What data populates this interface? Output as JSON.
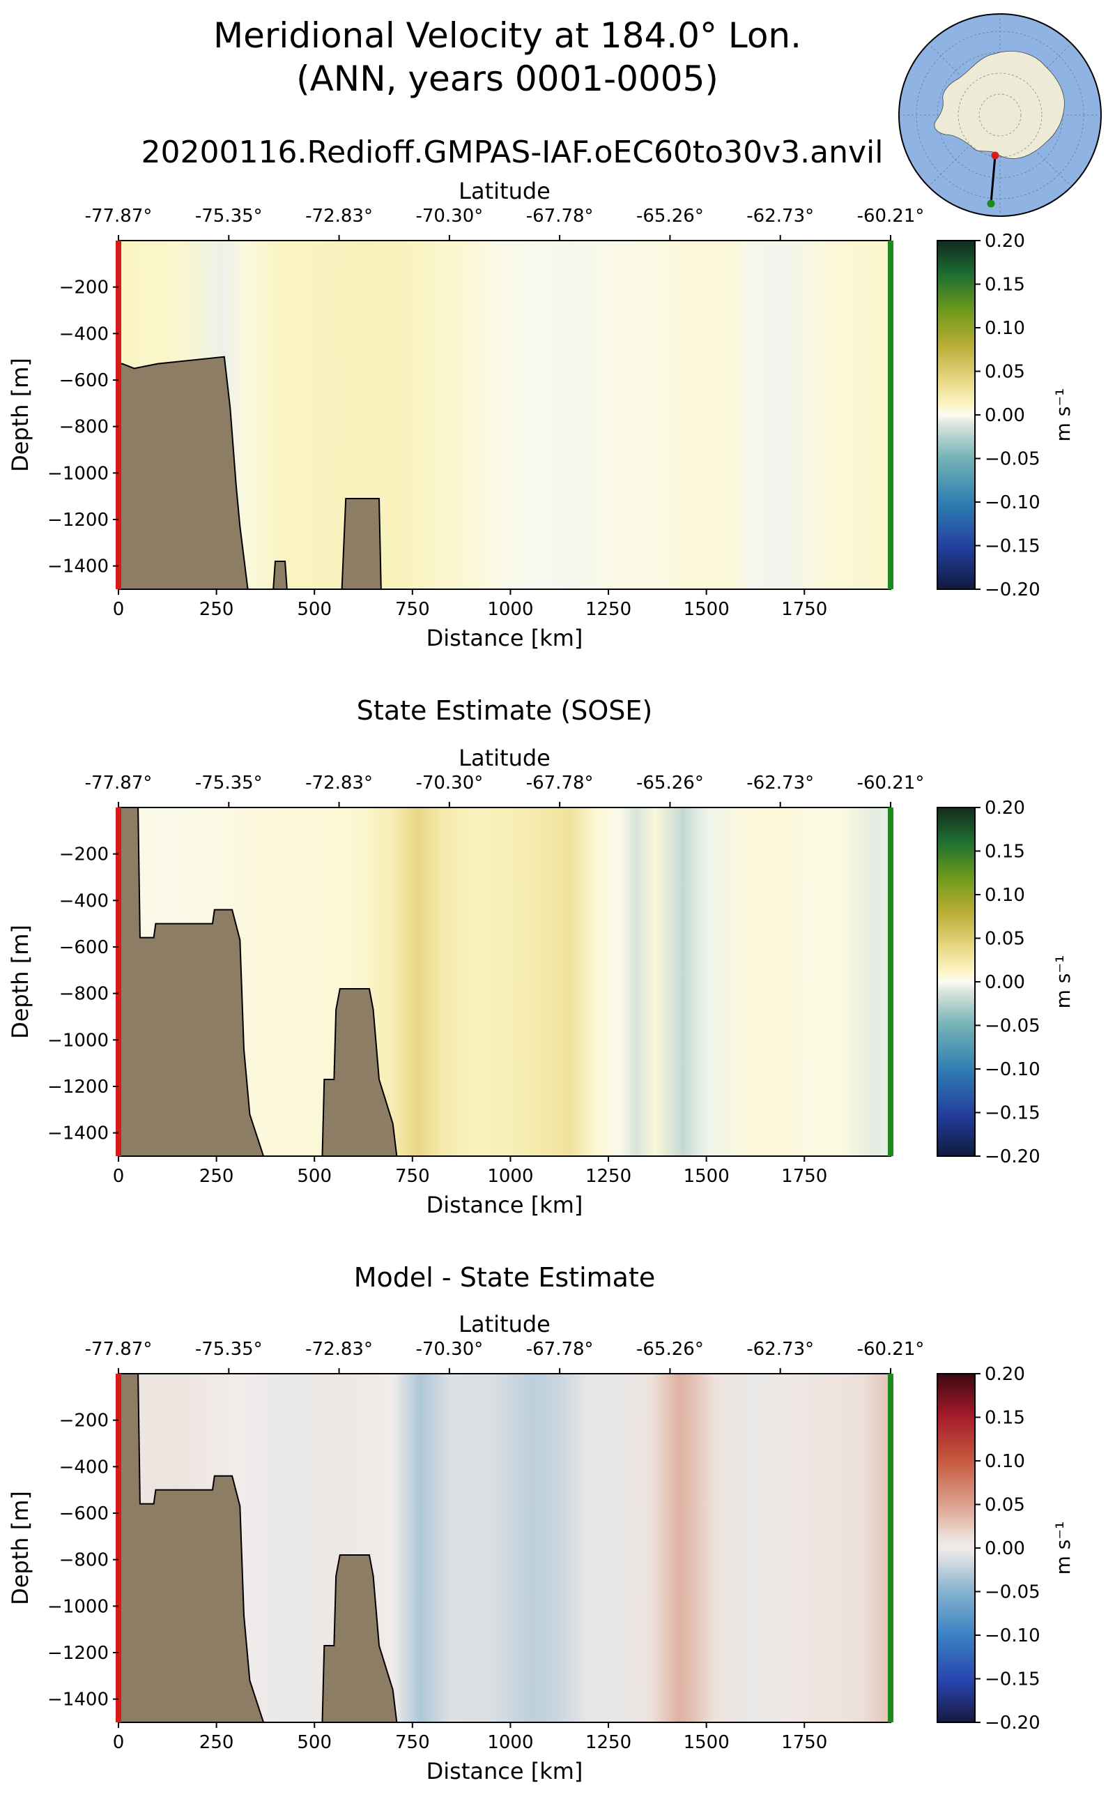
{
  "figure": {
    "title_line1": "Meridional Velocity at 184.0° Lon.",
    "title_line2": "(ANN, years 0001-0005)",
    "run_name": "20200116.Redioff.GMPAS-IAF.oEC60to30v3.anvil"
  },
  "colors": {
    "land": "#8C7D64",
    "start_marker": "#D71A1A",
    "end_marker": "#1B8C1B",
    "ocean_inset": "#8FB3E3",
    "antarctica_inset": "#EDEBD6"
  },
  "chart_data": [
    {
      "type": "heatmap",
      "title": "",
      "xlabel": "Distance [km]",
      "ylabel": "Depth [m]",
      "top_xlabel": "Latitude",
      "xlim": [
        0,
        1970
      ],
      "ylim": [
        -1500,
        0
      ],
      "xticks": [
        0,
        250,
        500,
        750,
        1000,
        1250,
        1500,
        1750
      ],
      "yticks": [
        -200,
        -400,
        -600,
        -800,
        -1000,
        -1200,
        -1400
      ],
      "latitude_ticks": [
        "-77.87°",
        "-75.35°",
        "-72.83°",
        "-70.30°",
        "-67.78°",
        "-65.26°",
        "-62.73°",
        "-60.21°"
      ],
      "colormap": "speed (yellow-green / teal-blue)",
      "colorbar": {
        "label": "m s⁻¹",
        "range": [
          -0.2,
          0.2
        ],
        "ticks": [
          "0.20",
          "0.15",
          "0.10",
          "0.05",
          "0.00",
          "−0.05",
          "−0.10",
          "−0.15",
          "−0.20"
        ]
      },
      "velocity_columns": {
        "distance_km": [
          0,
          150,
          270,
          320,
          420,
          520,
          620,
          720,
          820,
          920,
          980,
          1060,
          1160,
          1260,
          1380,
          1460,
          1560,
          1620,
          1700,
          1800,
          1900,
          1970
        ],
        "velocity_ms": [
          0.012,
          0.01,
          -0.005,
          0.005,
          0.013,
          0.014,
          0.016,
          0.015,
          0.01,
          0.006,
          0.002,
          -0.001,
          -0.002,
          0.003,
          0.004,
          0.007,
          0.007,
          -0.002,
          -0.003,
          0.006,
          0.008,
          0.01
        ]
      },
      "bathymetry": {
        "distance_km": [
          0,
          10,
          40,
          100,
          270,
          285,
          300,
          310,
          330,
          395,
          400,
          425,
          430,
          570,
          580,
          665,
          670,
          1970
        ],
        "depth_m": [
          -530,
          -530,
          -550,
          -530,
          -500,
          -720,
          -1050,
          -1230,
          -1500,
          -1500,
          -1380,
          -1380,
          -1500,
          -1500,
          -1110,
          -1110,
          -1500,
          -1500
        ]
      }
    },
    {
      "type": "heatmap",
      "title": "State Estimate (SOSE)",
      "xlabel": "Distance [km]",
      "ylabel": "Depth [m]",
      "top_xlabel": "Latitude",
      "xlim": [
        0,
        1970
      ],
      "ylim": [
        -1500,
        0
      ],
      "xticks": [
        0,
        250,
        500,
        750,
        1000,
        1250,
        1500,
        1750
      ],
      "yticks": [
        -200,
        -400,
        -600,
        -800,
        -1000,
        -1200,
        -1400
      ],
      "latitude_ticks": [
        "-77.87°",
        "-75.35°",
        "-72.83°",
        "-70.30°",
        "-67.78°",
        "-65.26°",
        "-62.73°",
        "-60.21°"
      ],
      "colormap": "speed (yellow-green / teal-blue)",
      "colorbar": {
        "label": "m s⁻¹",
        "range": [
          -0.2,
          0.2
        ],
        "ticks": [
          "0.20",
          "0.15",
          "0.10",
          "0.05",
          "0.00",
          "−0.05",
          "−0.10",
          "−0.15",
          "−0.20"
        ]
      },
      "velocity_columns": {
        "distance_km": [
          0,
          120,
          250,
          380,
          520,
          620,
          700,
          760,
          830,
          900,
          1000,
          1100,
          1150,
          1220,
          1280,
          1320,
          1370,
          1440,
          1500,
          1600,
          1700,
          1760,
          1850,
          1930,
          1970
        ],
        "velocity_ms": [
          0.004,
          0.002,
          0.004,
          0.006,
          0.007,
          0.009,
          0.02,
          0.04,
          0.022,
          0.015,
          0.018,
          0.025,
          0.03,
          0.008,
          0.002,
          -0.012,
          0.006,
          -0.02,
          -0.004,
          0.006,
          0.007,
          0.004,
          0.005,
          -0.008,
          -0.006
        ]
      },
      "bathymetry": {
        "distance_km": [
          0,
          50,
          55,
          90,
          95,
          240,
          245,
          290,
          310,
          320,
          335,
          370,
          460,
          470,
          520,
          525,
          550,
          555,
          565,
          640,
          650,
          665,
          700,
          710,
          1970
        ],
        "depth_m": [
          0,
          0,
          -560,
          -560,
          -500,
          -500,
          -440,
          -440,
          -570,
          -1040,
          -1320,
          -1500,
          -1500,
          -1500,
          -1500,
          -1170,
          -1170,
          -870,
          -780,
          -780,
          -870,
          -1170,
          -1360,
          -1500,
          -1500
        ]
      }
    },
    {
      "type": "heatmap",
      "title": "Model - State Estimate",
      "xlabel": "Distance [km]",
      "ylabel": "Depth [m]",
      "top_xlabel": "Latitude",
      "xlim": [
        0,
        1970
      ],
      "ylim": [
        -1500,
        0
      ],
      "xticks": [
        0,
        250,
        500,
        750,
        1000,
        1250,
        1500,
        1750
      ],
      "yticks": [
        -200,
        -400,
        -600,
        -800,
        -1000,
        -1200,
        -1400
      ],
      "latitude_ticks": [
        "-77.87°",
        "-75.35°",
        "-72.83°",
        "-70.30°",
        "-67.78°",
        "-65.26°",
        "-62.73°",
        "-60.21°"
      ],
      "colormap": "balance (red / blue)",
      "colorbar": {
        "label": "m s⁻¹",
        "range": [
          -0.2,
          0.2
        ],
        "ticks": [
          "0.20",
          "0.15",
          "0.10",
          "0.05",
          "0.00",
          "−0.05",
          "−0.10",
          "−0.15",
          "−0.20"
        ]
      },
      "velocity_columns": {
        "distance_km": [
          0,
          150,
          300,
          450,
          600,
          700,
          770,
          850,
          950,
          1060,
          1120,
          1200,
          1280,
          1360,
          1430,
          1470,
          1520,
          1620,
          1700,
          1800,
          1900,
          1970
        ],
        "velocity_ms": [
          0.006,
          0.008,
          0.0,
          -0.004,
          0.004,
          0.0,
          -0.032,
          -0.01,
          -0.012,
          -0.025,
          -0.02,
          -0.005,
          -0.005,
          0.01,
          0.04,
          0.03,
          0.01,
          -0.004,
          0.004,
          0.008,
          0.012,
          0.03
        ]
      },
      "bathymetry": {
        "distance_km": [
          0,
          50,
          55,
          90,
          95,
          240,
          245,
          290,
          310,
          320,
          335,
          370,
          460,
          470,
          520,
          525,
          550,
          555,
          565,
          640,
          650,
          665,
          700,
          710,
          1970
        ],
        "depth_m": [
          0,
          0,
          -560,
          -560,
          -500,
          -500,
          -440,
          -440,
          -570,
          -1040,
          -1320,
          -1500,
          -1500,
          -1500,
          -1500,
          -1170,
          -1170,
          -870,
          -780,
          -780,
          -870,
          -1170,
          -1360,
          -1500,
          -1500
        ]
      }
    }
  ]
}
